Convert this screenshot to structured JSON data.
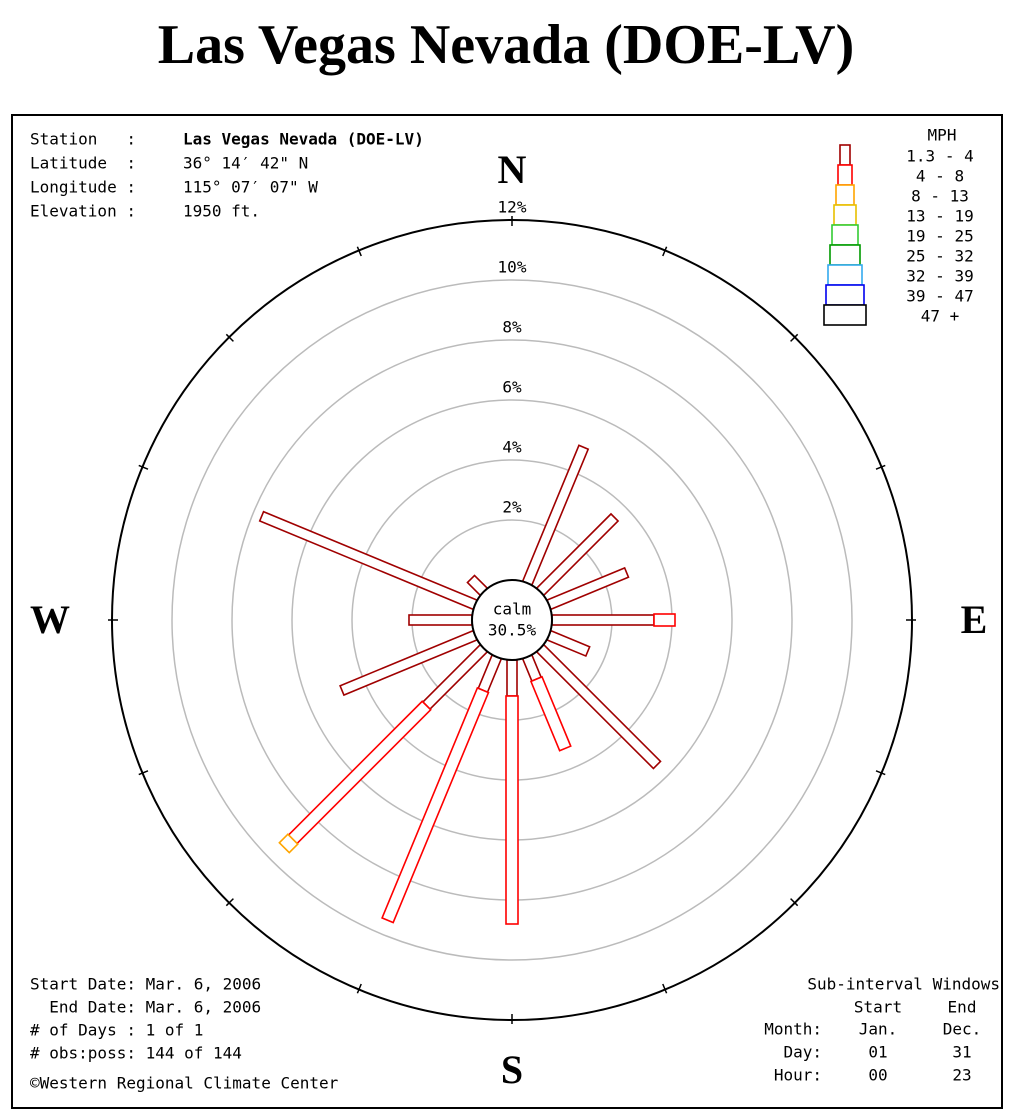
{
  "chart_data": {
    "type": "wind_rose",
    "title": "Las Vegas Nevada (DOE-LV)",
    "info": [
      {
        "label": "Station   :",
        "value": "Las Vegas Nevada (DOE-LV)"
      },
      {
        "label": "Latitude  :",
        "value": "36° 14′ 42\" N"
      },
      {
        "label": "Longitude :",
        "value": "115° 07′ 07\" W"
      },
      {
        "label": "Elevation :",
        "value": "1950 ft."
      }
    ],
    "compass": [
      {
        "label": "N",
        "angle": 0
      },
      {
        "label": "E",
        "angle": 90
      },
      {
        "label": "S",
        "angle": 180
      },
      {
        "label": "W",
        "angle": 270
      }
    ],
    "legend_title": "MPH",
    "angles": [
      0,
      22.5,
      45,
      67.5,
      90,
      112.5,
      135,
      157.5,
      180,
      202.5,
      225,
      247.5,
      270,
      292.5,
      315,
      337.5
    ],
    "series": [
      {
        "name": "1.3 - 4",
        "color": "#a00000",
        "values": [
          0,
          4.9,
          3.5,
          2.8,
          3.4,
          1.4,
          5.5,
          0.8,
          1.2,
          1.2,
          2.7,
          4.8,
          2.1,
          7.7,
          0.6,
          0
        ]
      },
      {
        "name": "4 - 8",
        "color": "#ff0000",
        "values": [
          0,
          0,
          0,
          0,
          0.7,
          0,
          0,
          2.5,
          7.6,
          8.3,
          6.3,
          0,
          0,
          0,
          0,
          0
        ]
      },
      {
        "name": "8 - 13",
        "color": "#ffa500",
        "values": [
          0,
          0,
          0,
          0,
          0,
          0,
          0,
          0,
          0,
          0,
          0.4,
          0,
          0,
          0,
          0,
          0
        ]
      },
      {
        "name": "13 - 19",
        "color": "#e8c000",
        "values": [
          0,
          0,
          0,
          0,
          0,
          0,
          0,
          0,
          0,
          0,
          0,
          0,
          0,
          0,
          0,
          0
        ]
      },
      {
        "name": "19 - 25",
        "color": "#33cc33",
        "values": [
          0,
          0,
          0,
          0,
          0,
          0,
          0,
          0,
          0,
          0,
          0,
          0,
          0,
          0,
          0,
          0
        ]
      },
      {
        "name": "25 - 32",
        "color": "#009900",
        "values": [
          0,
          0,
          0,
          0,
          0,
          0,
          0,
          0,
          0,
          0,
          0,
          0,
          0,
          0,
          0,
          0
        ]
      },
      {
        "name": "32 - 39",
        "color": "#33aaee",
        "values": [
          0,
          0,
          0,
          0,
          0,
          0,
          0,
          0,
          0,
          0,
          0,
          0,
          0,
          0,
          0,
          0
        ]
      },
      {
        "name": "39 - 47",
        "color": "#0000ee",
        "values": [
          0,
          0,
          0,
          0,
          0,
          0,
          0,
          0,
          0,
          0,
          0,
          0,
          0,
          0,
          0,
          0
        ]
      },
      {
        "name": "47 +",
        "color": "#000000",
        "values": [
          0,
          0,
          0,
          0,
          0,
          0,
          0,
          0,
          0,
          0,
          0,
          0,
          0,
          0,
          0,
          0
        ]
      }
    ],
    "rlim": [
      0,
      12
    ],
    "rticks": [
      {
        "value": 2,
        "label": "2%"
      },
      {
        "value": 4,
        "label": "4%"
      },
      {
        "value": 6,
        "label": "6%"
      },
      {
        "value": 8,
        "label": "8%"
      },
      {
        "value": 10,
        "label": "10%"
      },
      {
        "value": 12,
        "label": "12%"
      }
    ],
    "calm_label": "calm",
    "calm_value": 30.5,
    "calm_value_label": "30.5%",
    "period": [
      "Start Date: Mar. 6, 2006",
      "  End Date: Mar. 6, 2006",
      "# of Days : 1 of 1",
      "# obs:poss: 144 of 144"
    ],
    "credit": "©Western Regional Climate Center",
    "windows": {
      "title": "Sub-interval Windows",
      "columns": [
        "Start",
        "End"
      ],
      "rows": [
        {
          "label": "Month:",
          "values": [
            "Jan.",
            "Dec."
          ]
        },
        {
          "label": "Day:",
          "values": [
            "01",
            "31"
          ]
        },
        {
          "label": "Hour:",
          "values": [
            "00",
            "23"
          ]
        }
      ]
    }
  }
}
